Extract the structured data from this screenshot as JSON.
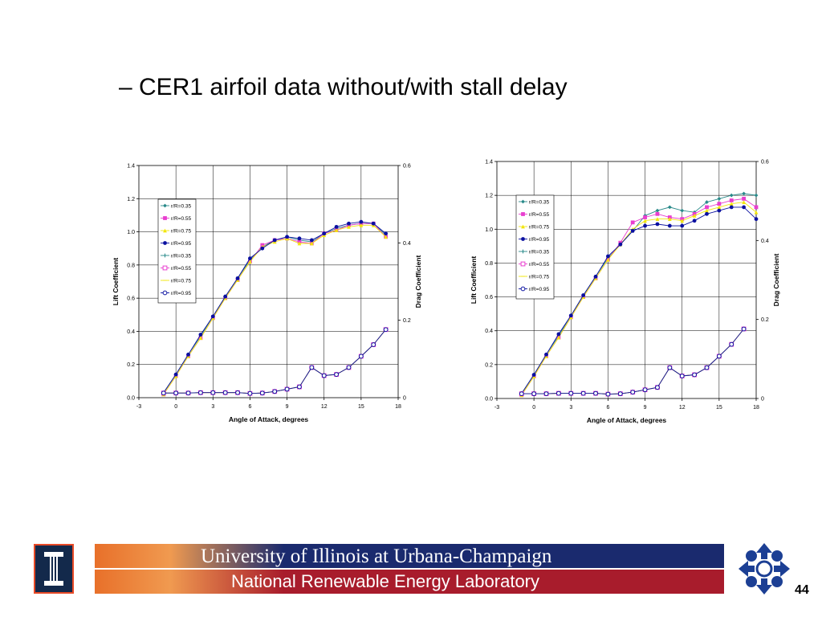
{
  "slide": {
    "title": "– CER1 airfoil data without/with stall delay",
    "page_number": "44"
  },
  "footer": {
    "university": "University of Illinois at Urbana-Champaign",
    "lab": "National Renewable Energy Laboratory"
  },
  "colors": {
    "banner_blue": "#1a2a6e",
    "banner_red": "#a81c2c",
    "banner_orange": "#e8702a",
    "illinois_blue": "#13294b",
    "nrel_blue": "#1c3f94"
  },
  "chart_data": [
    {
      "type": "line",
      "xlabel": "Angle of Attack, degrees",
      "ylabel": "Lift Coefficient",
      "y2label": "Drag Coefficient",
      "xlim": [
        -3,
        18
      ],
      "xticks": [
        "-3",
        "0",
        "3",
        "6",
        "9",
        "12",
        "15",
        "18"
      ],
      "ylim": [
        0,
        1.4
      ],
      "yticks": [
        "0.0",
        "0.2",
        "0.4",
        "0.6",
        "0.8",
        "1.0",
        "1.2",
        "1.4"
      ],
      "y2lim": [
        0,
        0.6
      ],
      "y2ticks": [
        "0",
        "0.2",
        "0.4",
        "0.6"
      ],
      "grid": true,
      "legend_position": "left",
      "x": [
        -1,
        0,
        1,
        2,
        3,
        4,
        5,
        6,
        7,
        8,
        9,
        10,
        11,
        12,
        13,
        14,
        15,
        16,
        17
      ],
      "series": [
        {
          "name": "r/R=0.35",
          "axis": "left",
          "color": "#2a8a8a",
          "marker": "diamond",
          "values": [
            0.03,
            0.14,
            0.26,
            0.37,
            0.49,
            0.61,
            0.72,
            0.83,
            0.91,
            0.95,
            0.97,
            0.95,
            0.94,
            0.99,
            1.02,
            1.04,
            1.05,
            1.05,
            0.98
          ]
        },
        {
          "name": "r/R=0.55",
          "axis": "left",
          "color": "#e83ecf",
          "marker": "square",
          "values": [
            0.02,
            0.13,
            0.25,
            0.36,
            0.48,
            0.6,
            0.71,
            0.82,
            0.92,
            0.95,
            0.96,
            0.94,
            0.93,
            0.99,
            1.01,
            1.04,
            1.05,
            1.05,
            0.97
          ]
        },
        {
          "name": "r/R=0.75",
          "axis": "left",
          "color": "#f2e60c",
          "marker": "triangle",
          "values": [
            0.02,
            0.13,
            0.25,
            0.36,
            0.48,
            0.6,
            0.71,
            0.82,
            0.91,
            0.94,
            0.96,
            0.93,
            0.93,
            0.98,
            1.01,
            1.03,
            1.04,
            1.04,
            0.97
          ]
        },
        {
          "name": "r/R=0.95",
          "axis": "left",
          "color": "#0a10a0",
          "marker": "circle",
          "values": [
            0.03,
            0.14,
            0.26,
            0.38,
            0.49,
            0.61,
            0.72,
            0.84,
            0.9,
            0.95,
            0.97,
            0.96,
            0.95,
            0.99,
            1.03,
            1.05,
            1.06,
            1.05,
            0.99
          ]
        },
        {
          "name": "r/R=0.35",
          "axis": "right",
          "color": "#2a8a8a",
          "marker": "plus",
          "values": [
            0.012,
            0.012,
            0.012,
            0.013,
            0.013,
            0.013,
            0.013,
            0.011,
            0.012,
            0.016,
            0.022,
            0.028,
            0.078,
            0.057,
            0.06,
            0.078,
            0.107,
            0.137,
            0.176
          ]
        },
        {
          "name": "r/R=0.55",
          "axis": "right",
          "color": "#e83ecf",
          "marker": "square-open",
          "values": [
            0.012,
            0.012,
            0.012,
            0.013,
            0.013,
            0.013,
            0.013,
            0.011,
            0.012,
            0.016,
            0.022,
            0.028,
            0.078,
            0.057,
            0.06,
            0.078,
            0.107,
            0.137,
            0.176
          ]
        },
        {
          "name": "r/R=0.75",
          "axis": "right",
          "color": "#f2e60c",
          "marker": "dash",
          "values": [
            0.012,
            0.012,
            0.012,
            0.013,
            0.013,
            0.013,
            0.013,
            0.011,
            0.012,
            0.016,
            0.022,
            0.028,
            0.078,
            0.057,
            0.06,
            0.078,
            0.107,
            0.137,
            0.176
          ]
        },
        {
          "name": "r/R=0.95",
          "axis": "right",
          "color": "#0a10a0",
          "marker": "circle-open",
          "values": [
            0.012,
            0.012,
            0.012,
            0.013,
            0.013,
            0.013,
            0.013,
            0.011,
            0.012,
            0.016,
            0.022,
            0.028,
            0.078,
            0.057,
            0.06,
            0.078,
            0.107,
            0.137,
            0.176
          ]
        }
      ]
    },
    {
      "type": "line",
      "xlabel": "Angle of Attack, degrees",
      "ylabel": "Lift Coefficient",
      "y2label": "Drag Coefficient",
      "xlim": [
        -3,
        18
      ],
      "xticks": [
        "-3",
        "0",
        "3",
        "6",
        "9",
        "12",
        "15",
        "18"
      ],
      "ylim": [
        0,
        1.4
      ],
      "yticks": [
        "0.0",
        "0.2",
        "0.4",
        "0.6",
        "0.8",
        "1.0",
        "1.2",
        "1.4"
      ],
      "y2lim": [
        0,
        0.6
      ],
      "y2ticks": [
        "0",
        "0.2",
        "0.4",
        "0.6"
      ],
      "grid": true,
      "legend_position": "left",
      "x": [
        -1,
        0,
        1,
        2,
        3,
        4,
        5,
        6,
        7,
        8,
        9,
        10,
        11,
        12,
        13,
        14,
        15,
        16,
        17,
        18
      ],
      "series": [
        {
          "name": "r/R=0.35",
          "axis": "left",
          "color": "#2a8a8a",
          "marker": "diamond",
          "values": [
            0.03,
            0.14,
            0.26,
            0.37,
            0.49,
            0.61,
            0.72,
            0.83,
            0.91,
            0.99,
            1.08,
            1.11,
            1.13,
            1.11,
            1.1,
            1.16,
            1.18,
            1.2,
            1.21,
            1.2
          ]
        },
        {
          "name": "r/R=0.55",
          "axis": "left",
          "color": "#e83ecf",
          "marker": "square",
          "values": [
            0.02,
            0.13,
            0.25,
            0.36,
            0.48,
            0.6,
            0.71,
            0.82,
            0.92,
            1.04,
            1.07,
            1.09,
            1.07,
            1.06,
            1.09,
            1.13,
            1.15,
            1.17,
            1.18,
            1.13
          ]
        },
        {
          "name": "r/R=0.75",
          "axis": "left",
          "color": "#f2e60c",
          "marker": "triangle",
          "values": [
            0.02,
            0.13,
            0.25,
            0.36,
            0.48,
            0.6,
            0.71,
            0.82,
            0.91,
            1.0,
            1.05,
            1.06,
            1.06,
            1.05,
            1.08,
            1.11,
            1.13,
            1.15,
            1.16,
            1.1
          ]
        },
        {
          "name": "r/R=0.95",
          "axis": "left",
          "color": "#0a10a0",
          "marker": "circle",
          "values": [
            0.03,
            0.14,
            0.26,
            0.38,
            0.49,
            0.61,
            0.72,
            0.84,
            0.91,
            0.99,
            1.02,
            1.03,
            1.02,
            1.02,
            1.05,
            1.09,
            1.11,
            1.13,
            1.13,
            1.06
          ]
        },
        {
          "name": "r/R=0.35",
          "axis": "right",
          "color": "#2a8a8a",
          "marker": "plus",
          "values": [
            0.012,
            0.012,
            0.012,
            0.013,
            0.013,
            0.013,
            0.013,
            0.011,
            0.012,
            0.016,
            0.022,
            0.028,
            0.078,
            0.057,
            0.06,
            0.078,
            0.107,
            0.137,
            0.176,
            null
          ]
        },
        {
          "name": "r/R=0.55",
          "axis": "right",
          "color": "#e83ecf",
          "marker": "square-open",
          "values": [
            0.012,
            0.012,
            0.012,
            0.013,
            0.013,
            0.013,
            0.013,
            0.011,
            0.012,
            0.016,
            0.022,
            0.028,
            0.078,
            0.057,
            0.06,
            0.078,
            0.107,
            0.137,
            0.176,
            null
          ]
        },
        {
          "name": "r/R=0.75",
          "axis": "right",
          "color": "#f2e60c",
          "marker": "dash",
          "values": [
            0.012,
            0.012,
            0.012,
            0.013,
            0.013,
            0.013,
            0.013,
            0.011,
            0.012,
            0.016,
            0.022,
            0.028,
            0.078,
            0.057,
            0.06,
            0.078,
            0.107,
            0.137,
            0.176,
            null
          ]
        },
        {
          "name": "r/R=0.95",
          "axis": "right",
          "color": "#0a10a0",
          "marker": "circle-open",
          "values": [
            0.012,
            0.012,
            0.012,
            0.013,
            0.013,
            0.013,
            0.013,
            0.011,
            0.012,
            0.016,
            0.022,
            0.028,
            0.078,
            0.057,
            0.06,
            0.078,
            0.107,
            0.137,
            0.176,
            null
          ]
        }
      ]
    }
  ]
}
